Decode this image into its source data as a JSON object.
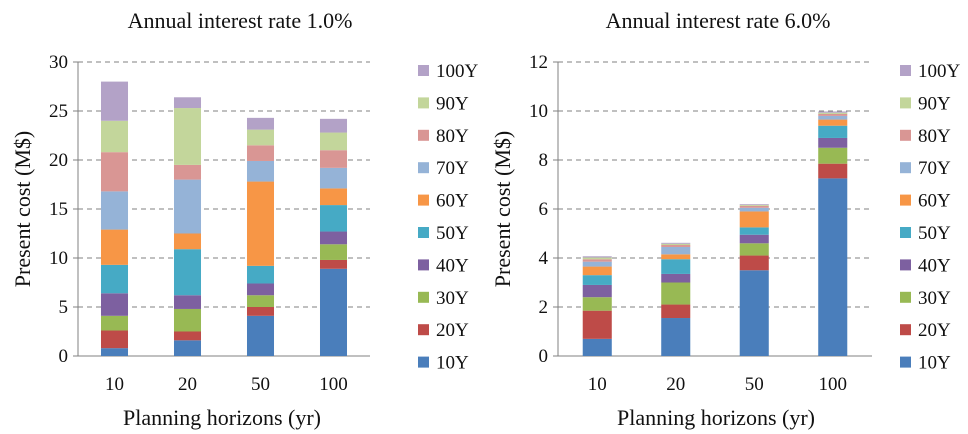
{
  "chart_data": [
    {
      "type": "bar",
      "stacked": true,
      "title": "Annual interest rate 1.0%",
      "xlabel": "Planning horizons (yr)",
      "ylabel": "Present cost (M$)",
      "categories": [
        "10",
        "20",
        "50",
        "100"
      ],
      "ylim": [
        0,
        30
      ],
      "yticks": [
        "0",
        "5",
        "10",
        "15",
        "20",
        "25",
        "30"
      ],
      "grid": true,
      "legend_position": "right",
      "series": [
        {
          "name": "10Y",
          "color": "#4a7ebb",
          "values": [
            0.8,
            1.6,
            4.1,
            8.9
          ]
        },
        {
          "name": "20Y",
          "color": "#be4b48",
          "values": [
            1.8,
            0.9,
            0.9,
            0.9
          ]
        },
        {
          "name": "30Y",
          "color": "#98b954",
          "values": [
            1.5,
            2.3,
            1.2,
            1.6
          ]
        },
        {
          "name": "40Y",
          "color": "#7d60a0",
          "values": [
            2.3,
            1.4,
            1.2,
            1.3
          ]
        },
        {
          "name": "50Y",
          "color": "#46aac5",
          "values": [
            2.9,
            4.7,
            1.8,
            2.7
          ]
        },
        {
          "name": "60Y",
          "color": "#f79646",
          "values": [
            3.6,
            1.6,
            8.6,
            1.7
          ]
        },
        {
          "name": "70Y",
          "color": "#95b3d7",
          "values": [
            3.9,
            5.5,
            2.1,
            2.1
          ]
        },
        {
          "name": "80Y",
          "color": "#d99694",
          "values": [
            4.0,
            1.5,
            1.6,
            1.8
          ]
        },
        {
          "name": "90Y",
          "color": "#c3d69b",
          "values": [
            3.2,
            5.8,
            1.6,
            1.8
          ]
        },
        {
          "name": "100Y",
          "color": "#b3a2c7",
          "values": [
            4.0,
            1.1,
            1.2,
            1.4
          ]
        }
      ]
    },
    {
      "type": "bar",
      "stacked": true,
      "title": "Annual interest rate 6.0%",
      "xlabel": "Planning horizons (yr)",
      "ylabel": "Present cost (M$)",
      "categories": [
        "10",
        "20",
        "50",
        "100"
      ],
      "ylim": [
        0,
        12
      ],
      "yticks": [
        "0",
        "2",
        "4",
        "6",
        "8",
        "10",
        "12"
      ],
      "grid": true,
      "legend_position": "right",
      "series": [
        {
          "name": "10Y",
          "color": "#4a7ebb",
          "values": [
            0.7,
            1.55,
            3.5,
            7.25
          ]
        },
        {
          "name": "20Y",
          "color": "#be4b48",
          "values": [
            1.15,
            0.55,
            0.6,
            0.6
          ]
        },
        {
          "name": "30Y",
          "color": "#98b954",
          "values": [
            0.55,
            0.9,
            0.5,
            0.65
          ]
        },
        {
          "name": "40Y",
          "color": "#7d60a0",
          "values": [
            0.5,
            0.35,
            0.35,
            0.4
          ]
        },
        {
          "name": "50Y",
          "color": "#46aac5",
          "values": [
            0.4,
            0.6,
            0.3,
            0.5
          ]
        },
        {
          "name": "60Y",
          "color": "#f79646",
          "values": [
            0.35,
            0.2,
            0.65,
            0.25
          ]
        },
        {
          "name": "70Y",
          "color": "#95b3d7",
          "values": [
            0.2,
            0.3,
            0.15,
            0.15
          ]
        },
        {
          "name": "80Y",
          "color": "#d99694",
          "values": [
            0.1,
            0.08,
            0.08,
            0.08
          ]
        },
        {
          "name": "90Y",
          "color": "#c3d69b",
          "values": [
            0.07,
            0.05,
            0.04,
            0.05
          ]
        },
        {
          "name": "100Y",
          "color": "#b3a2c7",
          "values": [
            0.05,
            0.04,
            0.03,
            0.05
          ]
        }
      ]
    }
  ]
}
